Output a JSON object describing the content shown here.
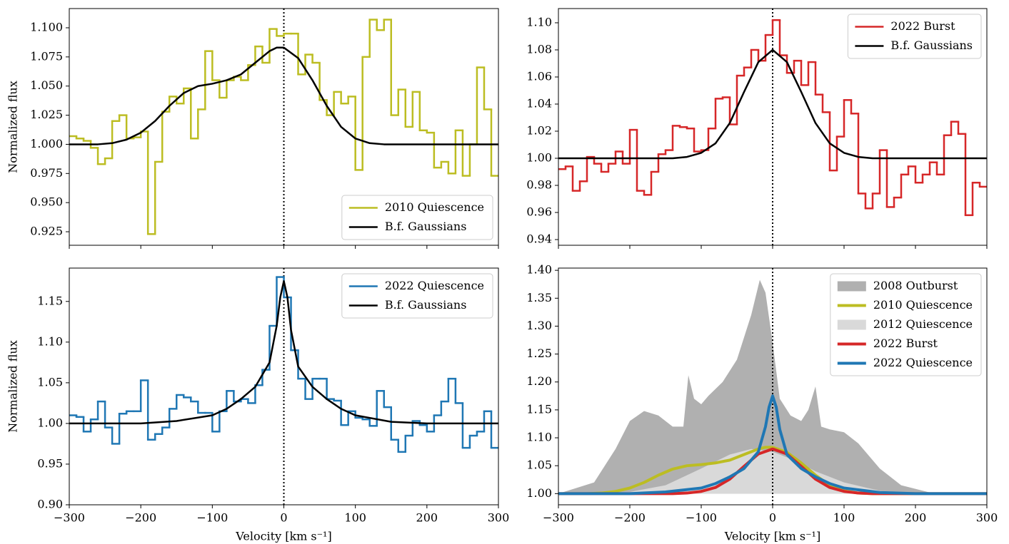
{
  "chart_data": [
    {
      "type": "line",
      "ylabel": "Normalized flux",
      "xlim": [
        -300,
        300
      ],
      "ylim": [
        0.9134,
        1.1165
      ],
      "xtick_labels": false,
      "xticks": [
        -300,
        -200,
        -100,
        0,
        100,
        200,
        300
      ],
      "yticks": [
        0.925,
        {
          "value": 0.95,
          "label": "0.950"
        },
        0.975,
        {
          "value": 1,
          "label": "1.000"
        },
        1.025,
        {
          "value": 1.05,
          "label": "1.050"
        },
        1.075,
        {
          "value": 1.1,
          "label": "1.100"
        }
      ],
      "vline": 0,
      "legend": "lower right",
      "series": [
        {
          "name": "2010 Quiescence",
          "color": "#bcbd22",
          "style": "step",
          "x": [
            -300,
            -290,
            -280,
            -270,
            -260,
            -250,
            -240,
            -230,
            -220,
            -210,
            -200,
            -190,
            -180,
            -170,
            -160,
            -150,
            -140,
            -130,
            -120,
            -110,
            -100,
            -90,
            -80,
            -70,
            -60,
            -50,
            -40,
            -30,
            -20,
            -10,
            0,
            10,
            20,
            30,
            40,
            50,
            60,
            70,
            80,
            90,
            100,
            110,
            120,
            130,
            140,
            150,
            160,
            170,
            180,
            190,
            200,
            210,
            220,
            230,
            240,
            250,
            260,
            270,
            280,
            290
          ],
          "values": [
            1.007,
            1.005,
            1.003,
            0.997,
            0.983,
            0.988,
            1.02,
            1.025,
            1.005,
            1.006,
            1.011,
            0.923,
            0.985,
            1.028,
            1.041,
            1.035,
            1.048,
            1.005,
            1.03,
            1.08,
            1.055,
            1.04,
            1.055,
            1.058,
            1.055,
            1.068,
            1.084,
            1.07,
            1.099,
            1.093,
            1.095,
            1.095,
            1.06,
            1.077,
            1.07,
            1.038,
            1.025,
            1.045,
            1.035,
            1.041,
            0.978,
            1.075,
            1.107,
            1.098,
            1.107,
            1.025,
            1.047,
            1.015,
            1.045,
            1.012,
            1.01,
            0.98,
            0.985,
            0.975,
            1.012,
            0.973,
            1.0,
            1.066,
            1.03,
            0.973
          ]
        },
        {
          "name": "B.f. Gaussians",
          "color": "#000000",
          "style": "line",
          "x": [
            -300,
            -260,
            -240,
            -220,
            -200,
            -180,
            -160,
            -140,
            -120,
            -100,
            -80,
            -60,
            -40,
            -20,
            -10,
            0,
            20,
            40,
            60,
            80,
            100,
            120,
            140,
            200,
            300
          ],
          "values": [
            1.0,
            1.0,
            1.001,
            1.004,
            1.01,
            1.02,
            1.033,
            1.044,
            1.05,
            1.052,
            1.055,
            1.06,
            1.07,
            1.08,
            1.083,
            1.083,
            1.074,
            1.055,
            1.033,
            1.015,
            1.005,
            1.001,
            1.0,
            1.0,
            1.0
          ]
        }
      ]
    },
    {
      "type": "line",
      "xlim": [
        -300,
        300
      ],
      "ylim": [
        0.9358,
        1.1105
      ],
      "xtick_labels": false,
      "xticks": [
        -300,
        -200,
        -100,
        0,
        100,
        200,
        300
      ],
      "yticks": [
        0.94,
        0.96,
        0.98,
        {
          "value": 1,
          "label": "1.00"
        },
        1.02,
        1.04,
        1.06,
        1.08,
        {
          "value": 1.1,
          "label": "1.10"
        }
      ],
      "vline": 0,
      "legend": "upper right",
      "series": [
        {
          "name": "2022 Burst",
          "color": "#d62728",
          "style": "step",
          "x": [
            -300,
            -290,
            -280,
            -270,
            -260,
            -250,
            -240,
            -230,
            -220,
            -210,
            -200,
            -190,
            -180,
            -170,
            -160,
            -150,
            -140,
            -130,
            -120,
            -110,
            -100,
            -90,
            -80,
            -70,
            -60,
            -50,
            -40,
            -30,
            -20,
            -10,
            0,
            10,
            20,
            30,
            40,
            50,
            60,
            70,
            80,
            90,
            100,
            110,
            120,
            130,
            140,
            150,
            160,
            170,
            180,
            190,
            200,
            210,
            220,
            230,
            240,
            250,
            260,
            270,
            280,
            290
          ],
          "values": [
            0.992,
            0.994,
            0.976,
            0.983,
            1.001,
            0.996,
            0.99,
            0.996,
            1.005,
            0.996,
            1.021,
            0.976,
            0.973,
            0.99,
            1.003,
            1.006,
            1.024,
            1.023,
            1.022,
            1.005,
            1.006,
            1.022,
            1.044,
            1.045,
            1.025,
            1.061,
            1.067,
            1.08,
            1.072,
            1.091,
            1.102,
            1.076,
            1.063,
            1.072,
            1.054,
            1.071,
            1.047,
            1.034,
            0.991,
            1.016,
            1.043,
            1.033,
            0.974,
            0.963,
            0.974,
            1.006,
            0.964,
            0.971,
            0.988,
            0.994,
            0.982,
            0.988,
            0.997,
            0.988,
            1.017,
            1.027,
            1.018,
            0.958,
            0.982,
            0.979
          ]
        },
        {
          "name": "B.f. Gaussians",
          "color": "#000000",
          "style": "line",
          "x": [
            -300,
            -200,
            -160,
            -140,
            -120,
            -100,
            -80,
            -60,
            -40,
            -20,
            0,
            20,
            40,
            60,
            80,
            100,
            120,
            140,
            160,
            200,
            300
          ],
          "values": [
            1.0,
            1.0,
            1.0,
            1.0,
            1.001,
            1.004,
            1.011,
            1.026,
            1.049,
            1.071,
            1.08,
            1.071,
            1.049,
            1.026,
            1.011,
            1.004,
            1.001,
            1.0,
            1.0,
            1.0,
            1.0
          ]
        }
      ]
    },
    {
      "type": "line",
      "ylabel": "Normalized flux",
      "xlabel": "Velocity [km s⁻¹]",
      "xlim": [
        -300,
        300
      ],
      "ylim": [
        0.9,
        1.191
      ],
      "xtick_labels": true,
      "xticks": [
        {
          "value": -300,
          "label": "−300"
        },
        {
          "value": -200,
          "label": "−200"
        },
        {
          "value": -100,
          "label": "−100"
        },
        0,
        100,
        200,
        300
      ],
      "yticks": [
        {
          "value": 0.9,
          "label": "0.90"
        },
        0.95,
        {
          "value": 1,
          "label": "1.00"
        },
        1.05,
        {
          "value": 1.1,
          "label": "1.10"
        },
        1.15
      ],
      "vline": 0,
      "legend": "upper right",
      "series": [
        {
          "name": "2022 Quiescence",
          "color": "#1f77b4",
          "style": "step",
          "x": [
            -300,
            -290,
            -280,
            -270,
            -260,
            -250,
            -240,
            -230,
            -220,
            -210,
            -200,
            -190,
            -180,
            -170,
            -160,
            -150,
            -140,
            -130,
            -120,
            -110,
            -100,
            -90,
            -80,
            -70,
            -60,
            -50,
            -40,
            -30,
            -20,
            -10,
            0,
            10,
            20,
            30,
            40,
            50,
            60,
            70,
            80,
            90,
            100,
            110,
            120,
            130,
            140,
            150,
            160,
            170,
            180,
            190,
            200,
            210,
            220,
            230,
            240,
            250,
            260,
            270,
            280,
            290
          ],
          "values": [
            1.01,
            1.008,
            0.99,
            1.005,
            1.027,
            0.995,
            0.975,
            1.012,
            1.015,
            1.015,
            1.053,
            0.98,
            0.987,
            0.995,
            1.018,
            1.035,
            1.032,
            1.027,
            1.013,
            1.013,
            0.99,
            1.015,
            1.04,
            1.027,
            1.03,
            1.025,
            1.047,
            1.066,
            1.12,
            1.18,
            1.155,
            1.09,
            1.055,
            1.03,
            1.055,
            1.055,
            1.03,
            1.028,
            0.998,
            1.015,
            1.007,
            1.005,
            0.997,
            1.04,
            1.02,
            0.98,
            0.965,
            0.985,
            1.003,
            0.998,
            0.99,
            1.01,
            1.027,
            1.055,
            1.025,
            0.97,
            0.985,
            0.99,
            1.015,
            0.97
          ]
        },
        {
          "name": "B.f. Gaussians",
          "color": "#000000",
          "style": "line",
          "x": [
            -300,
            -200,
            -150,
            -100,
            -80,
            -60,
            -40,
            -20,
            -10,
            -5,
            0,
            5,
            10,
            20,
            40,
            60,
            80,
            100,
            150,
            200,
            300
          ],
          "values": [
            1.0,
            1.0,
            1.003,
            1.01,
            1.018,
            1.03,
            1.045,
            1.075,
            1.12,
            1.155,
            1.175,
            1.155,
            1.115,
            1.07,
            1.045,
            1.03,
            1.018,
            1.01,
            1.002,
            1.0,
            1.0
          ]
        }
      ]
    },
    {
      "type": "line",
      "xlabel": "Velocity [km s⁻¹]",
      "xlim": [
        -300,
        300
      ],
      "ylim": [
        0.98,
        1.404
      ],
      "xtick_labels": true,
      "xticks": [
        {
          "value": -300,
          "label": "−300"
        },
        {
          "value": -200,
          "label": "−200"
        },
        {
          "value": -100,
          "label": "−100"
        },
        0,
        100,
        200,
        300
      ],
      "yticks": [
        {
          "value": 1,
          "label": "1.00"
        },
        1.05,
        {
          "value": 1.1,
          "label": "1.10"
        },
        1.15,
        {
          "value": 1.2,
          "label": "1.20"
        },
        1.25,
        {
          "value": 1.3,
          "label": "1.30"
        },
        1.35,
        {
          "value": 1.4,
          "label": "1.40"
        }
      ],
      "vline": 0,
      "legend": "upper right",
      "series": [
        {
          "name": "2008 Outburst",
          "color": "#b0b0b0",
          "style": "fill",
          "x": [
            -300,
            -250,
            -220,
            -200,
            -180,
            -160,
            -140,
            -125,
            -118,
            -110,
            -100,
            -90,
            -70,
            -50,
            -30,
            -18,
            -10,
            0,
            10,
            25,
            40,
            50,
            60,
            68,
            80,
            100,
            120,
            150,
            180,
            220,
            300
          ],
          "values": [
            1.0,
            1.02,
            1.08,
            1.13,
            1.148,
            1.14,
            1.12,
            1.12,
            1.212,
            1.17,
            1.16,
            1.175,
            1.2,
            1.24,
            1.32,
            1.383,
            1.36,
            1.27,
            1.17,
            1.14,
            1.13,
            1.15,
            1.192,
            1.12,
            1.115,
            1.11,
            1.09,
            1.045,
            1.015,
            1.002,
            1.0
          ]
        },
        {
          "name": "2010 Quiescence",
          "color": "#bcbd22",
          "style": "line",
          "x": [
            -300,
            -260,
            -240,
            -220,
            -200,
            -180,
            -160,
            -140,
            -120,
            -100,
            -80,
            -60,
            -40,
            -20,
            -10,
            0,
            20,
            40,
            60,
            80,
            100,
            120,
            140,
            200,
            300
          ],
          "values": [
            1.0,
            1.0,
            1.001,
            1.004,
            1.01,
            1.02,
            1.033,
            1.044,
            1.05,
            1.052,
            1.055,
            1.06,
            1.07,
            1.08,
            1.083,
            1.083,
            1.074,
            1.055,
            1.033,
            1.015,
            1.005,
            1.001,
            1.0,
            1.0,
            1.0
          ]
        },
        {
          "name": "2012 Quiescence",
          "color": "#d9d9d9",
          "style": "fill",
          "x": [
            -300,
            -200,
            -150,
            -100,
            -60,
            -30,
            0,
            30,
            60,
            100,
            150,
            200,
            300
          ],
          "values": [
            1.0,
            1.003,
            1.015,
            1.045,
            1.07,
            1.08,
            1.075,
            1.06,
            1.04,
            1.02,
            1.005,
            1.001,
            1.0
          ]
        },
        {
          "name": "2022 Burst",
          "color": "#d62728",
          "style": "line",
          "x": [
            -300,
            -200,
            -160,
            -140,
            -120,
            -100,
            -80,
            -60,
            -40,
            -20,
            0,
            20,
            40,
            60,
            80,
            100,
            120,
            140,
            160,
            200,
            300
          ],
          "values": [
            1.0,
            1.0,
            1.0,
            1.0,
            1.001,
            1.004,
            1.011,
            1.026,
            1.049,
            1.071,
            1.08,
            1.071,
            1.049,
            1.026,
            1.011,
            1.004,
            1.001,
            1.0,
            1.0,
            1.0,
            1.0
          ]
        },
        {
          "name": "2022 Quiescence",
          "color": "#1f77b4",
          "style": "line",
          "x": [
            -300,
            -200,
            -150,
            -100,
            -80,
            -60,
            -40,
            -20,
            -10,
            -5,
            0,
            5,
            10,
            20,
            40,
            60,
            80,
            100,
            150,
            200,
            300
          ],
          "values": [
            1.0,
            1.0,
            1.003,
            1.01,
            1.018,
            1.03,
            1.045,
            1.075,
            1.12,
            1.155,
            1.175,
            1.155,
            1.115,
            1.07,
            1.045,
            1.03,
            1.018,
            1.01,
            1.002,
            1.0,
            1.0
          ]
        }
      ]
    }
  ]
}
